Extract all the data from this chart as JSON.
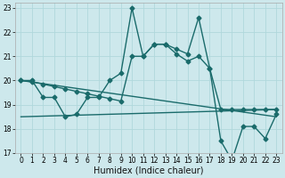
{
  "xlabel": "Humidex (Indice chaleur)",
  "xlim": [
    -0.5,
    23.5
  ],
  "ylim": [
    17,
    23.2
  ],
  "yticks": [
    17,
    18,
    19,
    20,
    21,
    22,
    23
  ],
  "xticks": [
    0,
    1,
    2,
    3,
    4,
    5,
    6,
    7,
    8,
    9,
    10,
    11,
    12,
    13,
    14,
    15,
    16,
    17,
    18,
    19,
    20,
    21,
    22,
    23
  ],
  "bg_color": "#cde8ec",
  "line_color": "#1a6b6b",
  "grid_color": "#b0d8dc",
  "line1_x": [
    0,
    1,
    2,
    3,
    4,
    5,
    6,
    7,
    8,
    9,
    10,
    11,
    12,
    13,
    14,
    15,
    16,
    17,
    18,
    19,
    20,
    21,
    22,
    23
  ],
  "line1_y": [
    20.0,
    20.0,
    19.3,
    19.3,
    18.5,
    18.6,
    19.3,
    19.3,
    20.0,
    20.3,
    23.0,
    21.0,
    21.5,
    21.5,
    21.3,
    21.1,
    22.6,
    20.5,
    17.5,
    16.7,
    18.1,
    18.1,
    17.6,
    18.6
  ],
  "line2_x": [
    0,
    1,
    2,
    3,
    4,
    5,
    6,
    7,
    8,
    9,
    10,
    11,
    12,
    13,
    14,
    15,
    16,
    17,
    18,
    19,
    20,
    21,
    22,
    23
  ],
  "line2_y": [
    20.0,
    19.95,
    19.85,
    19.75,
    19.65,
    19.55,
    19.45,
    19.35,
    19.25,
    19.15,
    21.0,
    21.0,
    21.5,
    21.5,
    21.1,
    20.8,
    21.0,
    20.5,
    18.8,
    18.8,
    18.8,
    18.8,
    18.8,
    18.8
  ],
  "line3_x": [
    0,
    23
  ],
  "line3_y": [
    20.0,
    18.5
  ],
  "line4_x": [
    0,
    23
  ],
  "line4_y": [
    18.5,
    18.8
  ],
  "xlabel_fontsize": 7,
  "tick_fontsize": 5.5,
  "linewidth": 1.0,
  "markersize": 2.5
}
